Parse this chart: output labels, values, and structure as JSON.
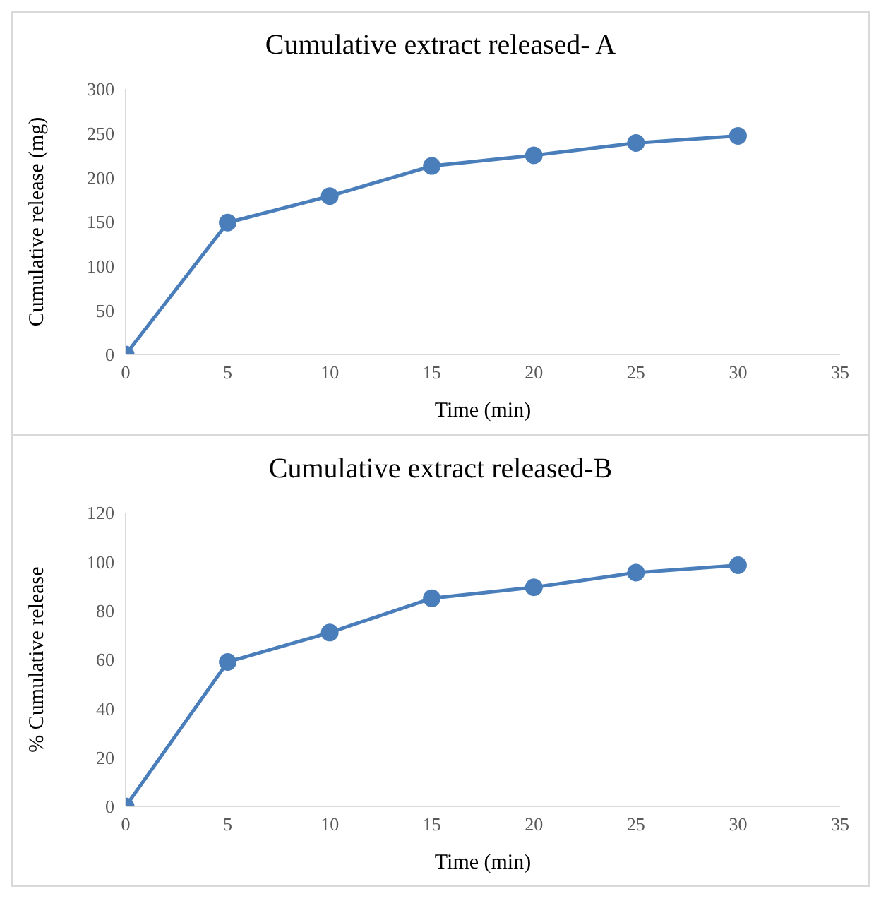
{
  "chart_data": [
    {
      "type": "line",
      "title": "Cumulative extract released- A",
      "xlabel": "Time (min)",
      "ylabel": "Cumulative release (mg)",
      "x": [
        0,
        5,
        10,
        15,
        20,
        25,
        30
      ],
      "series": [
        {
          "color": "#4a7ebb",
          "values": [
            0,
            149,
            179,
            213,
            225,
            239,
            247
          ]
        }
      ],
      "xlim": [
        0,
        35
      ],
      "xticks": [
        0,
        5,
        10,
        15,
        20,
        25,
        30,
        35
      ],
      "ylim": [
        0,
        300
      ],
      "yticks": [
        0,
        50,
        100,
        150,
        200,
        250,
        300
      ],
      "grid": false,
      "legend": false,
      "marker": "circle",
      "line_style": "solid"
    },
    {
      "type": "line",
      "title": "Cumulative extract released-B",
      "xlabel": "Time (min)",
      "ylabel": "% Cumulative release",
      "x": [
        0,
        5,
        10,
        15,
        20,
        25,
        30
      ],
      "series": [
        {
          "color": "#4a7ebb",
          "values": [
            0,
            59,
            71,
            85,
            89.5,
            95.5,
            98.5
          ]
        }
      ],
      "xlim": [
        0,
        35
      ],
      "xticks": [
        0,
        5,
        10,
        15,
        20,
        25,
        30,
        35
      ],
      "ylim": [
        0,
        120
      ],
      "yticks": [
        0,
        20,
        40,
        60,
        80,
        100,
        120
      ],
      "grid": false,
      "legend": false,
      "marker": "circle",
      "line_style": "solid"
    }
  ]
}
